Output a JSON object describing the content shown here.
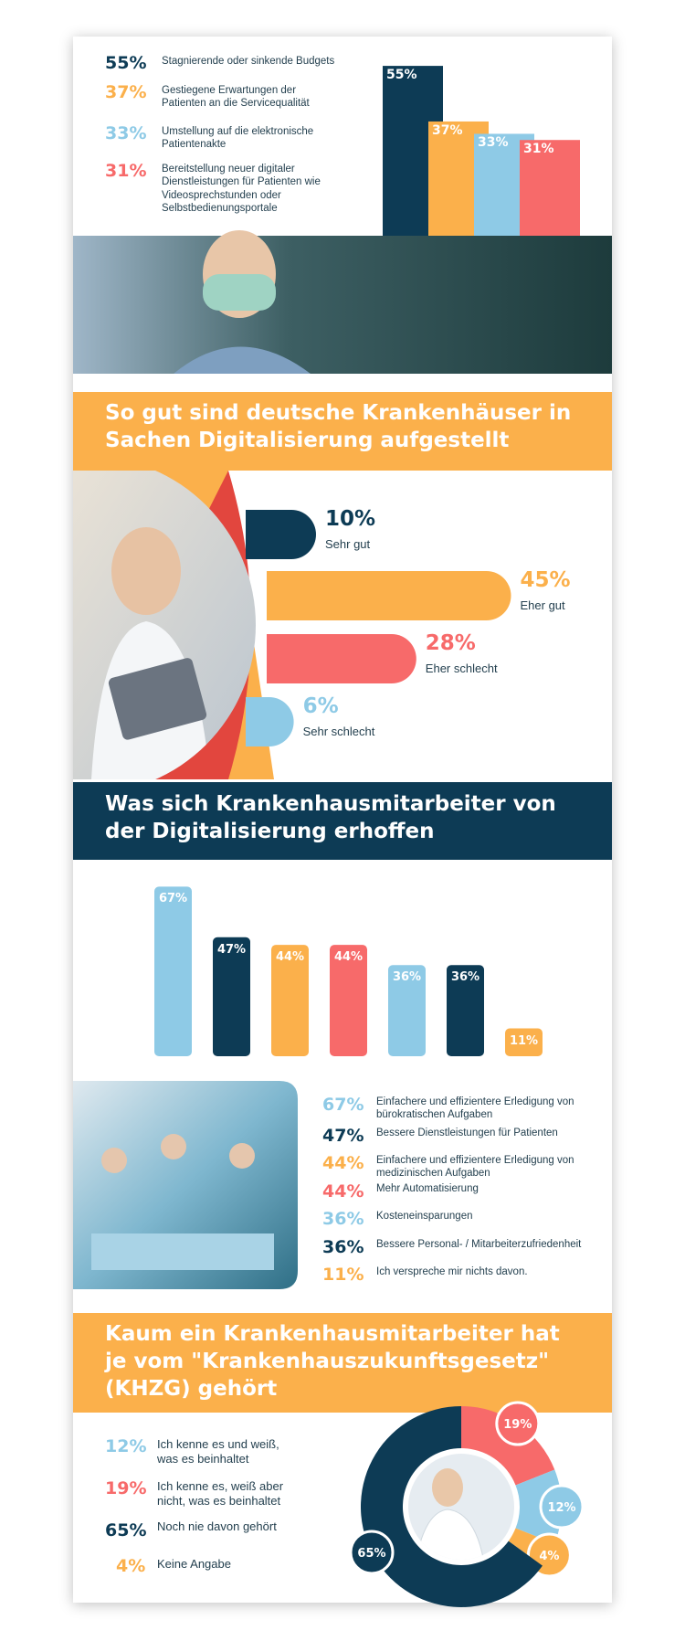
{
  "chart_data": [
    {
      "type": "bar",
      "categories": [
        "Stagnierende oder sinkende Budgets",
        "Gestiegene Erwartungen der Patienten an die Servicequalität",
        "Umstellung auf die elektronische Patientenakte",
        "Bereitstellung neuer digitaler Dienstleistungen für Patienten wie Videosprechstunden oder Selbstbedienungsportale"
      ],
      "values": [
        55,
        37,
        33,
        31
      ],
      "value_labels": [
        "55%",
        "37%",
        "33%",
        "31%"
      ],
      "colors": [
        "#0d3b55",
        "#fbb04b",
        "#8ecae6",
        "#f76a6a"
      ]
    },
    {
      "type": "hbar",
      "title": "So gut sind deutsche Krankenhäuser in Sachen Digitalisierung aufgestellt",
      "categories": [
        "Sehr gut",
        "Eher gut",
        "Eher schlecht",
        "Sehr schlecht"
      ],
      "values": [
        10,
        45,
        28,
        6
      ],
      "value_labels": [
        "10%",
        "45%",
        "28%",
        "6%"
      ],
      "colors": [
        "#0d3b55",
        "#fbb04b",
        "#f76a6a",
        "#8ecae6"
      ]
    },
    {
      "type": "bar",
      "title": "Was sich Krankenhausmitarbeiter von der Digitalisierung erhoffen",
      "categories": [
        "Einfachere und effizientere Erledigung von bürokratischen Aufgaben",
        "Bessere Dienstleistungen für Patienten",
        "Einfachere und effizientere Erledigung von medizinischen Aufgaben",
        "Mehr Automatisierung",
        "Kosteneinsparungen",
        "Bessere Personal- / Mitarbeiterzufriedenheit",
        "Ich verspreche mir nichts davon."
      ],
      "values": [
        67,
        47,
        44,
        44,
        36,
        36,
        11
      ],
      "value_labels": [
        "67%",
        "47%",
        "44%",
        "44%",
        "36%",
        "36%",
        "11%"
      ],
      "colors": [
        "#8ecae6",
        "#0d3b55",
        "#fbb04b",
        "#f76a6a",
        "#8ecae6",
        "#0d3b55",
        "#fbb04b"
      ]
    },
    {
      "type": "donut",
      "title": "Kaum ein Krankenhausmitarbeiter hat je vom \"Krankenhauszukunftsgesetz\" (KHZG) gehört",
      "categories": [
        "Ich kenne es und weiß, was es beinhaltet",
        "Ich kenne es, weiß aber nicht, was es beinhaltet",
        "Noch nie davon gehört",
        "Keine Angabe"
      ],
      "values": [
        12,
        19,
        65,
        4
      ],
      "value_labels": [
        "12%",
        "19%",
        "65%",
        "4%"
      ],
      "colors": [
        "#8ecae6",
        "#f76a6a",
        "#0d3b55",
        "#fbb04b"
      ]
    }
  ]
}
